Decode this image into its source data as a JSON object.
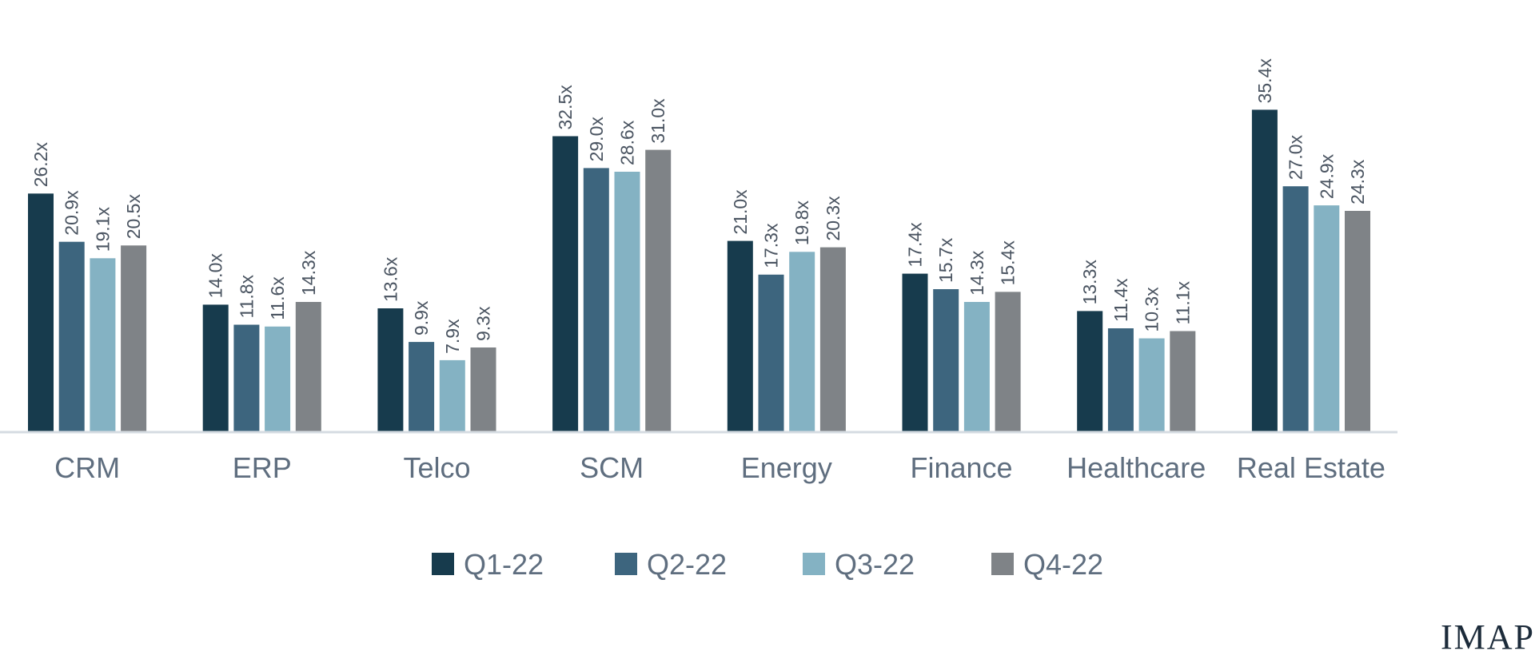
{
  "chart_data": {
    "type": "bar",
    "categories": [
      "CRM",
      "ERP",
      "Telco",
      "SCM",
      "Energy",
      "Finance",
      "Healthcare",
      "Real Estate"
    ],
    "series": [
      {
        "name": "Q1-22",
        "color": "#173b4d",
        "values": [
          26.2,
          14.0,
          13.6,
          32.5,
          21.0,
          17.4,
          13.3,
          35.4
        ]
      },
      {
        "name": "Q2-22",
        "color": "#3d657e",
        "values": [
          20.9,
          11.8,
          9.9,
          29.0,
          17.3,
          15.7,
          11.4,
          27.0
        ]
      },
      {
        "name": "Q3-22",
        "color": "#84b2c3",
        "values": [
          19.1,
          11.6,
          7.9,
          28.6,
          19.8,
          14.3,
          10.3,
          24.9
        ]
      },
      {
        "name": "Q4-22",
        "color": "#7f8387",
        "values": [
          20.5,
          14.3,
          9.3,
          31.0,
          20.3,
          15.4,
          11.1,
          24.3
        ]
      }
    ],
    "data_labels": [
      [
        "26.2x",
        "14.0x",
        "13.6x",
        "32.5x",
        "21.0x",
        "17.4x",
        "13.3x",
        "35.4x"
      ],
      [
        "20.9x",
        "11.8x",
        "9.9x",
        "29.0x",
        "17.3x",
        "15.7x",
        "11.4x",
        "27.0x"
      ],
      [
        "19.1x",
        "11.6x",
        "7.9x",
        "28.6x",
        "19.8x",
        "14.3x",
        "10.3x",
        "24.9x"
      ],
      [
        "20.5x",
        "14.3x",
        "9.3x",
        "31.0x",
        "20.3x",
        "15.4x",
        "11.1x",
        "24.3x"
      ]
    ],
    "ylim": [
      0,
      40
    ],
    "grid": false,
    "legend_position": "bottom",
    "axis_color": "#d5dbe1"
  },
  "brand": {
    "text": "IMAP"
  }
}
